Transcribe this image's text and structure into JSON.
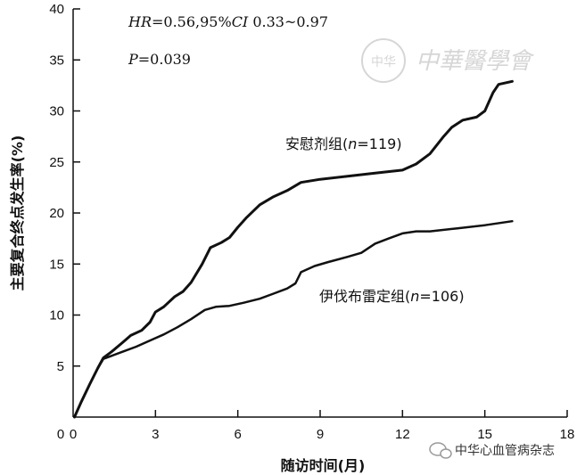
{
  "chart_data": {
    "type": "line",
    "title": "",
    "xlabel": "随访时间(月)",
    "ylabel": "主要复合终点发生率(%)",
    "xlim": [
      0,
      18
    ],
    "ylim": [
      0,
      40
    ],
    "xticks": [
      0,
      3,
      6,
      9,
      12,
      15,
      18
    ],
    "yticks": [
      5,
      10,
      15,
      20,
      25,
      30,
      35,
      40
    ],
    "y_origin_label": "0",
    "annotations": {
      "hr_line": {
        "hr_label": "HR",
        "hr_value": "=0.56,95%",
        "ci_label": "CI",
        "ci_value": " 0.33~0.97"
      },
      "p_line": {
        "p_label": "P",
        "p_value": "=0.039"
      }
    },
    "series": [
      {
        "name": "安慰剂组",
        "label_prefix": "安慰剂组(",
        "n_label": "n",
        "n_value": "=119)",
        "x": [
          0.05,
          0.3,
          0.6,
          0.9,
          1.1,
          1.4,
          1.8,
          2.1,
          2.5,
          2.8,
          3.0,
          3.3,
          3.7,
          4.0,
          4.3,
          4.7,
          5.0,
          5.4,
          5.7,
          6.0,
          6.3,
          6.8,
          7.3,
          7.8,
          8.3,
          9.0,
          10.0,
          11.0,
          12.0,
          12.5,
          13.0,
          13.5,
          13.8,
          14.2,
          14.7,
          15.0,
          15.3,
          15.5,
          16.0
        ],
        "values": [
          0.0,
          1.5,
          3.2,
          4.8,
          5.8,
          6.4,
          7.3,
          8.0,
          8.5,
          9.3,
          10.3,
          10.8,
          11.8,
          12.3,
          13.2,
          15.0,
          16.6,
          17.1,
          17.6,
          18.6,
          19.5,
          20.8,
          21.6,
          22.2,
          23.0,
          23.3,
          23.6,
          23.9,
          24.2,
          24.8,
          25.8,
          27.5,
          28.4,
          29.1,
          29.4,
          30.0,
          31.8,
          32.6,
          32.9
        ]
      },
      {
        "name": "伊伐布雷定组",
        "label_prefix": "伊伐布雷定组(",
        "n_label": "n",
        "n_value": "=106)",
        "x": [
          0.05,
          0.3,
          0.6,
          0.9,
          1.1,
          1.4,
          1.8,
          2.3,
          2.8,
          3.3,
          3.8,
          4.3,
          4.8,
          5.2,
          5.7,
          6.2,
          6.8,
          7.3,
          7.8,
          8.1,
          8.3,
          8.8,
          9.3,
          10.0,
          10.5,
          11.0,
          11.5,
          12.0,
          12.5,
          13.0,
          14.0,
          15.0,
          16.0
        ],
        "values": [
          0.0,
          1.5,
          3.2,
          4.8,
          5.7,
          6.0,
          6.4,
          6.9,
          7.5,
          8.1,
          8.8,
          9.6,
          10.5,
          10.8,
          10.9,
          11.2,
          11.6,
          12.1,
          12.6,
          13.1,
          14.2,
          14.8,
          15.2,
          15.7,
          16.1,
          17.0,
          17.5,
          18.0,
          18.2,
          18.2,
          18.5,
          18.8,
          19.2
        ]
      }
    ]
  },
  "watermark": {
    "emblem_text": "中华",
    "script_text": "中華醫學會"
  },
  "wechat": {
    "text": "中华心血管病杂志"
  }
}
